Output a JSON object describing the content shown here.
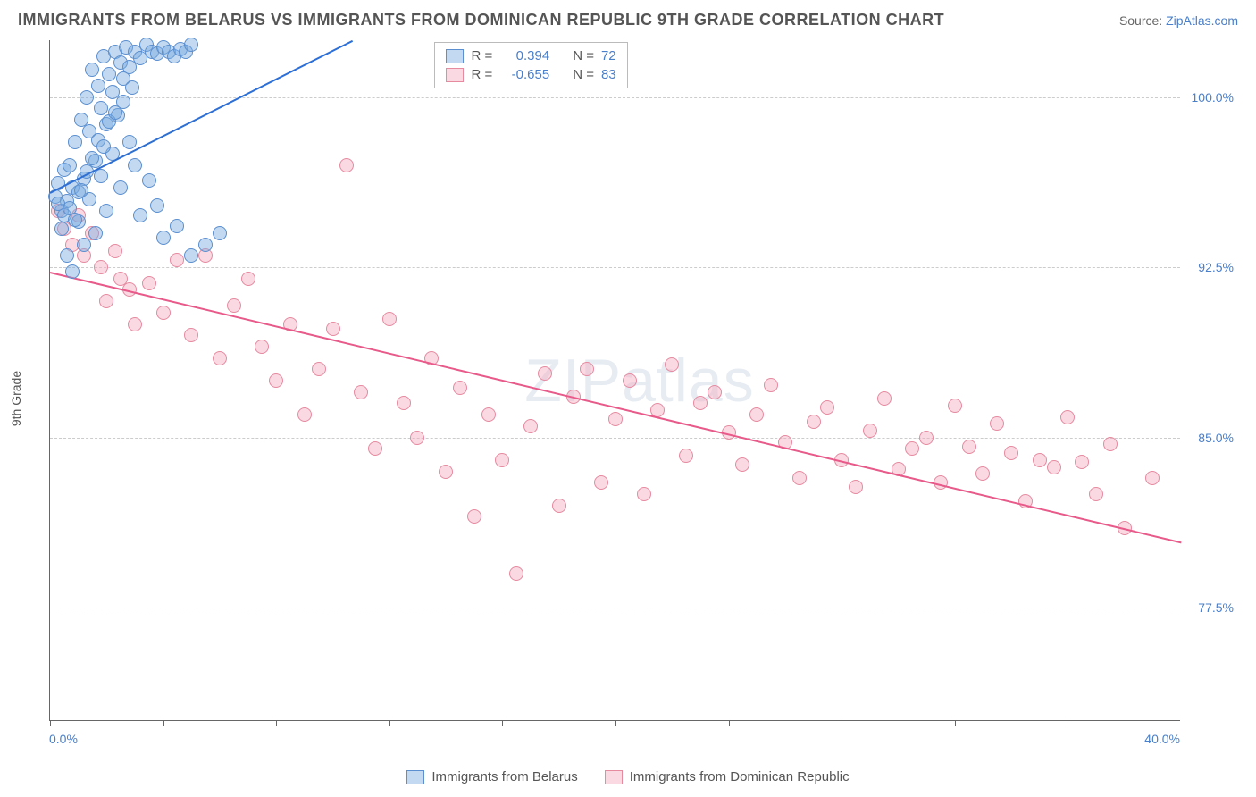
{
  "title": "IMMIGRANTS FROM BELARUS VS IMMIGRANTS FROM DOMINICAN REPUBLIC 9TH GRADE CORRELATION CHART",
  "source_label": "Source:",
  "source_link": "ZipAtlas.com",
  "ylabel": "9th Grade",
  "watermark": "ZIPatlas",
  "chart": {
    "type": "scatter",
    "background_color": "#ffffff",
    "grid_color": "#cccccc",
    "grid_dash": "3,3",
    "xlim": [
      0,
      40
    ],
    "ylim": [
      72.5,
      102.5
    ],
    "xtick_positions": [
      0,
      4,
      8,
      12,
      16,
      20,
      24,
      28,
      32,
      36
    ],
    "ytick_positions": [
      77.5,
      85.0,
      92.5,
      100.0
    ],
    "ytick_labels": [
      "77.5%",
      "85.0%",
      "92.5%",
      "100.0%"
    ],
    "xaxis_min_label": "0.0%",
    "xaxis_max_label": "40.0%",
    "axis_label_color": "#4a7fc9",
    "axis_label_fontsize": 14,
    "marker_radius": 8,
    "marker_border_width": 1,
    "series": {
      "belarus": {
        "label": "Immigrants from Belarus",
        "fill": "rgba(120,170,225,0.45)",
        "stroke": "#5b8fd0",
        "trend_color": "#2e6fd4",
        "R": "0.394",
        "N": "72",
        "trend_x1": 0,
        "trend_y1": 95.8,
        "trend_x2": 10.7,
        "trend_y2": 102.5,
        "points": [
          [
            0.2,
            95.6
          ],
          [
            0.3,
            96.2
          ],
          [
            0.4,
            95.0
          ],
          [
            0.5,
            96.8
          ],
          [
            0.6,
            95.4
          ],
          [
            0.7,
            97.0
          ],
          [
            0.8,
            96.0
          ],
          [
            0.9,
            98.0
          ],
          [
            1.0,
            95.8
          ],
          [
            1.1,
            99.0
          ],
          [
            1.2,
            96.4
          ],
          [
            1.3,
            100.0
          ],
          [
            1.4,
            98.5
          ],
          [
            1.5,
            101.2
          ],
          [
            1.6,
            97.2
          ],
          [
            1.7,
            100.5
          ],
          [
            1.8,
            99.5
          ],
          [
            1.9,
            101.8
          ],
          [
            2.0,
            98.8
          ],
          [
            2.1,
            101.0
          ],
          [
            2.2,
            100.2
          ],
          [
            2.3,
            102.0
          ],
          [
            2.4,
            99.2
          ],
          [
            2.5,
            101.5
          ],
          [
            2.6,
            100.8
          ],
          [
            2.7,
            102.2
          ],
          [
            2.8,
            101.3
          ],
          [
            3.0,
            102.0
          ],
          [
            3.2,
            101.7
          ],
          [
            3.4,
            102.3
          ],
          [
            3.6,
            102.0
          ],
          [
            3.8,
            101.9
          ],
          [
            4.0,
            102.2
          ],
          [
            4.2,
            102.0
          ],
          [
            4.4,
            101.8
          ],
          [
            4.6,
            102.1
          ],
          [
            4.8,
            102.0
          ],
          [
            5.0,
            102.3
          ],
          [
            0.4,
            94.2
          ],
          [
            0.6,
            93.0
          ],
          [
            0.8,
            92.3
          ],
          [
            1.0,
            94.5
          ],
          [
            1.2,
            93.5
          ],
          [
            1.4,
            95.5
          ],
          [
            1.6,
            94.0
          ],
          [
            1.8,
            96.5
          ],
          [
            2.0,
            95.0
          ],
          [
            2.2,
            97.5
          ],
          [
            2.5,
            96.0
          ],
          [
            2.8,
            98.0
          ],
          [
            3.0,
            97.0
          ],
          [
            3.2,
            94.8
          ],
          [
            3.5,
            96.3
          ],
          [
            3.8,
            95.2
          ],
          [
            4.0,
            93.8
          ],
          [
            4.5,
            94.3
          ],
          [
            5.0,
            93.0
          ],
          [
            5.5,
            93.5
          ],
          [
            6.0,
            94.0
          ],
          [
            0.3,
            95.3
          ],
          [
            0.5,
            94.8
          ],
          [
            0.7,
            95.1
          ],
          [
            0.9,
            94.6
          ],
          [
            1.1,
            95.9
          ],
          [
            1.3,
            96.7
          ],
          [
            1.5,
            97.3
          ],
          [
            1.7,
            98.1
          ],
          [
            1.9,
            97.8
          ],
          [
            2.1,
            98.9
          ],
          [
            2.3,
            99.3
          ],
          [
            2.6,
            99.8
          ],
          [
            2.9,
            100.4
          ]
        ]
      },
      "dominican": {
        "label": "Immigrants from Dominican Republic",
        "fill": "rgba(245,170,190,0.45)",
        "stroke": "#e68aa0",
        "trend_color": "#e85a8a",
        "R": "-0.655",
        "N": "83",
        "trend_x1": 0,
        "trend_y1": 92.3,
        "trend_x2": 40,
        "trend_y2": 80.4,
        "points": [
          [
            0.3,
            95.0
          ],
          [
            0.5,
            94.2
          ],
          [
            0.8,
            93.5
          ],
          [
            1.0,
            94.8
          ],
          [
            1.2,
            93.0
          ],
          [
            1.5,
            94.0
          ],
          [
            1.8,
            92.5
          ],
          [
            2.0,
            91.0
          ],
          [
            2.3,
            93.2
          ],
          [
            2.5,
            92.0
          ],
          [
            2.8,
            91.5
          ],
          [
            3.0,
            90.0
          ],
          [
            3.5,
            91.8
          ],
          [
            4.0,
            90.5
          ],
          [
            4.5,
            92.8
          ],
          [
            5.0,
            89.5
          ],
          [
            5.5,
            93.0
          ],
          [
            6.0,
            88.5
          ],
          [
            6.5,
            90.8
          ],
          [
            7.0,
            92.0
          ],
          [
            7.5,
            89.0
          ],
          [
            8.0,
            87.5
          ],
          [
            8.5,
            90.0
          ],
          [
            9.0,
            86.0
          ],
          [
            9.5,
            88.0
          ],
          [
            10.0,
            89.8
          ],
          [
            10.5,
            97.0
          ],
          [
            11.0,
            87.0
          ],
          [
            11.5,
            84.5
          ],
          [
            12.0,
            90.2
          ],
          [
            12.5,
            86.5
          ],
          [
            13.0,
            85.0
          ],
          [
            13.5,
            88.5
          ],
          [
            14.0,
            83.5
          ],
          [
            14.5,
            87.2
          ],
          [
            15.0,
            81.5
          ],
          [
            15.5,
            86.0
          ],
          [
            16.0,
            84.0
          ],
          [
            16.5,
            79.0
          ],
          [
            17.0,
            85.5
          ],
          [
            17.5,
            87.8
          ],
          [
            18.0,
            82.0
          ],
          [
            18.5,
            86.8
          ],
          [
            19.0,
            88.0
          ],
          [
            19.5,
            83.0
          ],
          [
            20.0,
            85.8
          ],
          [
            20.5,
            87.5
          ],
          [
            21.0,
            82.5
          ],
          [
            21.5,
            86.2
          ],
          [
            22.0,
            88.2
          ],
          [
            22.5,
            84.2
          ],
          [
            23.0,
            86.5
          ],
          [
            23.5,
            87.0
          ],
          [
            24.0,
            85.2
          ],
          [
            24.5,
            83.8
          ],
          [
            25.0,
            86.0
          ],
          [
            25.5,
            87.3
          ],
          [
            26.0,
            84.8
          ],
          [
            26.5,
            83.2
          ],
          [
            27.0,
            85.7
          ],
          [
            27.5,
            86.3
          ],
          [
            28.0,
            84.0
          ],
          [
            28.5,
            82.8
          ],
          [
            29.0,
            85.3
          ],
          [
            29.5,
            86.7
          ],
          [
            30.0,
            83.6
          ],
          [
            30.5,
            84.5
          ],
          [
            31.0,
            85.0
          ],
          [
            31.5,
            83.0
          ],
          [
            32.0,
            86.4
          ],
          [
            32.5,
            84.6
          ],
          [
            33.0,
            83.4
          ],
          [
            33.5,
            85.6
          ],
          [
            34.0,
            84.3
          ],
          [
            34.5,
            82.2
          ],
          [
            35.0,
            84.0
          ],
          [
            35.5,
            83.7
          ],
          [
            36.0,
            85.9
          ],
          [
            36.5,
            83.9
          ],
          [
            37.0,
            82.5
          ],
          [
            37.5,
            84.7
          ],
          [
            38.0,
            81.0
          ],
          [
            39.0,
            83.2
          ]
        ]
      }
    },
    "legend_top": {
      "R_label": "R =",
      "N_label": "N ="
    }
  }
}
